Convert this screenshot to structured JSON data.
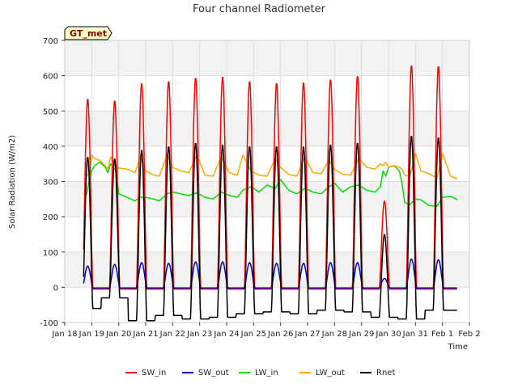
{
  "chart_data": {
    "type": "line",
    "title": "Four channel Radiometer",
    "xlabel": "Time",
    "ylabel": "Solar Radiation (W/m2)",
    "badge": "GT_met",
    "ylim": [
      -100,
      700
    ],
    "y_ticks": [
      -100,
      0,
      100,
      200,
      300,
      400,
      500,
      600,
      700
    ],
    "xlim": [
      "2016-01-18",
      "2016-02-02"
    ],
    "x_ticks": [
      "Jan 18",
      "Jan 19",
      "Jan 20",
      "Jan 21",
      "Jan 22",
      "Jan 23",
      "Jan 24",
      "Jan 25",
      "Jan 26",
      "Jan 27",
      "Jan 28",
      "Jan 29",
      "Jan 30",
      "Jan 31",
      "Feb 1",
      "Feb 2"
    ],
    "grid": true,
    "legend_placement": "bottom",
    "background_bands": "alternating light grey horizontal bands",
    "series": [
      {
        "name": "SW_in",
        "color": "#ff0000",
        "daily_peak_days": [
          0.85,
          1.85,
          2.85,
          3.85,
          4.85,
          5.85,
          6.85,
          7.85,
          8.85,
          9.85,
          10.85,
          11.85,
          12.85,
          13.85
        ],
        "daily_peak_values": [
          535,
          530,
          580,
          585,
          595,
          598,
          585,
          580,
          582,
          590,
          600,
          245,
          630,
          628
        ],
        "night_value": -5,
        "x_range_days": [
          0.7,
          14.55
        ]
      },
      {
        "name": "SW_out",
        "color": "#0000cc",
        "daily_peak_days": [
          0.85,
          1.85,
          2.85,
          3.85,
          4.85,
          5.85,
          6.85,
          7.85,
          8.85,
          9.85,
          10.85,
          11.85,
          12.85,
          13.85
        ],
        "daily_peak_values": [
          60,
          65,
          70,
          68,
          72,
          72,
          70,
          68,
          68,
          70,
          70,
          25,
          80,
          78
        ],
        "night_value": -2,
        "x_range_days": [
          0.7,
          14.55
        ]
      },
      {
        "name": "LW_in",
        "color": "#00dd00",
        "x_days": [
          0.7,
          0.8,
          0.9,
          1.0,
          1.1,
          1.3,
          1.5,
          1.6,
          1.7,
          1.9,
          2.0,
          2.3,
          2.6,
          2.8,
          3.0,
          3.3,
          3.5,
          3.8,
          4.0,
          4.3,
          4.6,
          4.9,
          5.2,
          5.5,
          5.8,
          6.1,
          6.4,
          6.6,
          6.9,
          7.2,
          7.5,
          7.8,
          8.0,
          8.3,
          8.6,
          8.9,
          9.2,
          9.5,
          9.8,
          10.0,
          10.3,
          10.6,
          10.9,
          11.2,
          11.5,
          11.7,
          11.8,
          11.9,
          12.0,
          12.2,
          12.4,
          12.5,
          12.6,
          12.8,
          13.0,
          13.2,
          13.5,
          13.8,
          14.0,
          14.3,
          14.55
        ],
        "y_values": [
          265,
          262,
          300,
          330,
          345,
          355,
          340,
          325,
          350,
          330,
          265,
          255,
          245,
          255,
          255,
          250,
          245,
          265,
          270,
          265,
          260,
          268,
          255,
          250,
          270,
          260,
          255,
          275,
          285,
          270,
          290,
          280,
          305,
          275,
          265,
          280,
          270,
          265,
          285,
          295,
          270,
          285,
          290,
          275,
          270,
          285,
          330,
          315,
          340,
          345,
          330,
          295,
          240,
          235,
          250,
          248,
          232,
          230,
          255,
          258,
          248
        ]
      },
      {
        "name": "LW_out",
        "color": "#ffa500",
        "x_days": [
          0.7,
          0.8,
          0.9,
          1.0,
          1.1,
          1.3,
          1.5,
          1.6,
          1.7,
          1.9,
          2.0,
          2.3,
          2.6,
          2.8,
          3.0,
          3.3,
          3.5,
          3.8,
          4.0,
          4.3,
          4.6,
          4.9,
          5.2,
          5.5,
          5.8,
          6.1,
          6.4,
          6.6,
          6.9,
          7.2,
          7.5,
          7.8,
          8.0,
          8.3,
          8.6,
          8.9,
          9.2,
          9.5,
          9.8,
          10.0,
          10.3,
          10.6,
          10.9,
          11.2,
          11.5,
          11.7,
          11.8,
          11.9,
          12.0,
          12.2,
          12.4,
          12.5,
          12.6,
          12.8,
          13.0,
          13.2,
          13.5,
          13.8,
          14.0,
          14.3,
          14.55
        ],
        "y_values": [
          322,
          318,
          320,
          375,
          365,
          360,
          345,
          335,
          370,
          340,
          338,
          335,
          325,
          370,
          330,
          318,
          315,
          375,
          340,
          330,
          325,
          375,
          318,
          315,
          370,
          325,
          318,
          375,
          330,
          318,
          315,
          365,
          340,
          320,
          315,
          370,
          325,
          322,
          360,
          335,
          320,
          318,
          365,
          340,
          335,
          350,
          345,
          355,
          340,
          345,
          340,
          335,
          318,
          315,
          380,
          330,
          322,
          310,
          380,
          315,
          308
        ]
      },
      {
        "name": "Rnet",
        "color": "#000000",
        "daily_peak_days": [
          0.85,
          1.85,
          2.85,
          3.85,
          4.85,
          5.85,
          6.85,
          7.85,
          8.85,
          9.85,
          10.85,
          11.85,
          12.85,
          13.85
        ],
        "daily_peak_values": [
          370,
          365,
          390,
          400,
          410,
          405,
          400,
          400,
          400,
          405,
          410,
          150,
          430,
          425
        ],
        "night_values": [
          -60,
          -30,
          -95,
          -80,
          -90,
          -85,
          -75,
          -70,
          -75,
          -65,
          -70,
          -85,
          -90,
          -65
        ],
        "x_range_days": [
          0.7,
          14.55
        ]
      }
    ]
  }
}
